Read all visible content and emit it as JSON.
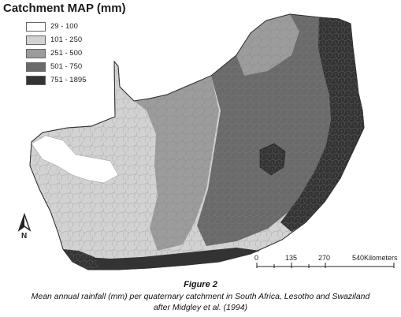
{
  "legend": {
    "title": "Catchment MAP (mm)",
    "classes": [
      {
        "label": "29 - 100",
        "color": "#ffffff"
      },
      {
        "label": "101 - 250",
        "color": "#d2d2d2"
      },
      {
        "label": "251 - 500",
        "color": "#9c9c9c"
      },
      {
        "label": "501 - 750",
        "color": "#6a6a6a"
      },
      {
        "label": "751 - 1895",
        "color": "#333333"
      }
    ]
  },
  "north_arrow": {
    "letter": "N"
  },
  "scale_bar": {
    "ticks": [
      "0",
      "135",
      "270",
      "540"
    ],
    "units": "Kilometers"
  },
  "caption": {
    "figure": "Figure 2",
    "line1": "Mean annual rainfall (mm) per quaternary catchment in South Africa, Lesotho and Swaziland",
    "line2": "after Midgley et al. (1994)"
  }
}
